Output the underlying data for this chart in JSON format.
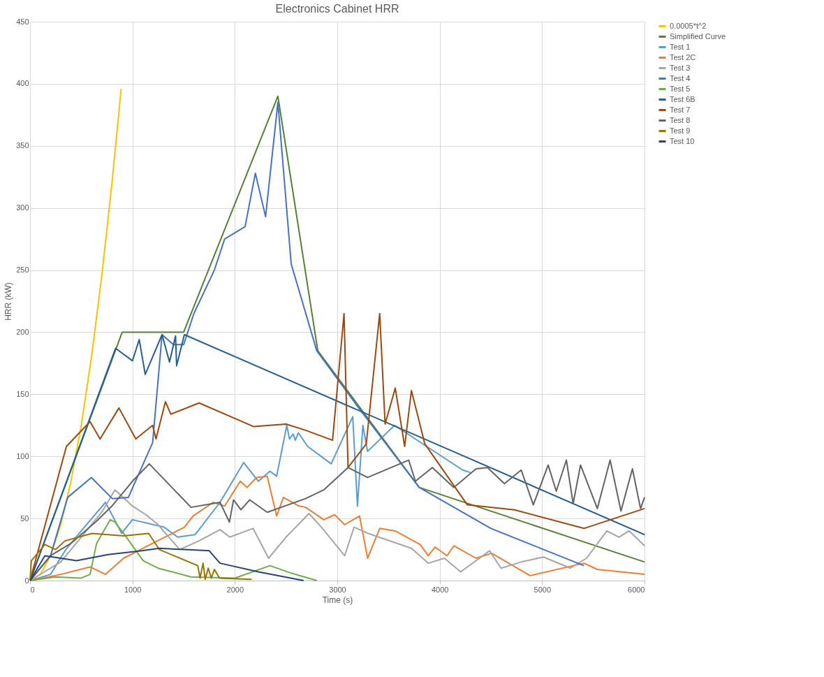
{
  "chart_data": {
    "type": "line",
    "title": "Electronics Cabinet HRR",
    "xlabel": "Time (s)",
    "ylabel": "HRR (kW)",
    "xlim": [
      0,
      6000
    ],
    "xticks": [
      0,
      1000,
      2000,
      3000,
      4000,
      5000,
      6000
    ],
    "ylim": [
      0,
      450
    ],
    "yticks": [
      0,
      50,
      100,
      150,
      200,
      250,
      300,
      350,
      400,
      450
    ],
    "grid": true,
    "legend": "right",
    "marker": "none",
    "line_style": "solid",
    "series": [
      {
        "name": "0.0005*t^2",
        "color": "#ffc000",
        "x": [
          0,
          100,
          200,
          300,
          400,
          500,
          600,
          700,
          800,
          890
        ],
        "values": [
          0,
          5,
          20,
          45,
          80,
          125,
          180,
          245,
          320,
          396
        ]
      },
      {
        "name": "Simplified Curve",
        "color": "#548235",
        "x": [
          0,
          900,
          1500,
          2420,
          2810,
          3800,
          6000
        ],
        "values": [
          0,
          200,
          200,
          390,
          185,
          75,
          15
        ]
      },
      {
        "name": "Test 1",
        "color": "#5b9bd5",
        "x": [
          0,
          200,
          350,
          500,
          737,
          895,
          1000,
          1309,
          1441,
          1612,
          1855,
          2086,
          2230,
          2342,
          2408,
          2507,
          2533,
          2570,
          2590,
          2620,
          2711,
          2941,
          3151,
          3197,
          3250,
          3296,
          3559,
          4224,
          4300
        ],
        "values": [
          0,
          5,
          25,
          40,
          63,
          38,
          49,
          43,
          35,
          37,
          63,
          95,
          80,
          88,
          84,
          125,
          114,
          118,
          113,
          119,
          108,
          94,
          132,
          60,
          125,
          104,
          125,
          89,
          87
        ]
      },
      {
        "name": "Test 2C",
        "color": "#ed7d31",
        "x": [
          0,
          300,
          586,
          737,
          914,
          1151,
          1507,
          1592,
          1789,
          1900,
          2053,
          2120,
          2211,
          2316,
          2408,
          2474,
          2625,
          2691,
          2868,
          2974,
          3072,
          3217,
          3296,
          3414,
          3566,
          3809,
          3888,
          3954,
          4072,
          4138,
          4355,
          4507,
          4882,
          5408,
          5539,
          6000
        ],
        "values": [
          0,
          5,
          11,
          5,
          18,
          28,
          43,
          52,
          63,
          60,
          80,
          75,
          83,
          84,
          52,
          67,
          60,
          59,
          49,
          53,
          45,
          52,
          18,
          42,
          40,
          29,
          20,
          27,
          20,
          28,
          18,
          22,
          4,
          14,
          9,
          5
        ]
      },
      {
        "name": "Test 3",
        "color": "#a5a5a5",
        "x": [
          0,
          300,
          500,
          700,
          829,
          1000,
          1132,
          1250,
          1461,
          1650,
          1855,
          1950,
          2178,
          2329,
          2500,
          2724,
          2855,
          3072,
          3164,
          3300,
          3724,
          3888,
          4046,
          4204,
          4487,
          4599,
          4796,
          5013,
          5276,
          5434,
          5632,
          5750,
          5850,
          6000
        ],
        "values": [
          0,
          15,
          35,
          55,
          73,
          60,
          53,
          45,
          25,
          32,
          41,
          35,
          42,
          18,
          35,
          54,
          42,
          20,
          43,
          38,
          26,
          14,
          18,
          7,
          24,
          10,
          15,
          19,
          10,
          18,
          40,
          35,
          40,
          28
        ]
      },
      {
        "name": "Test 4",
        "color": "#4472c4",
        "x": [
          0,
          200,
          368,
          599,
          803,
          960,
          1197,
          1289,
          1400,
          1500,
          1600,
          1800,
          1900,
          2100,
          2200,
          2300,
          2420,
          2550,
          2800,
          3200,
          3800,
          4500,
          5408
        ],
        "values": [
          0,
          20,
          67,
          83,
          66,
          67,
          111,
          198,
          190,
          190,
          215,
          250,
          275,
          285,
          328,
          293,
          385,
          255,
          185,
          140,
          75,
          42,
          12
        ]
      },
      {
        "name": "Test 5",
        "color": "#70ad47",
        "x": [
          0,
          250,
          500,
          586,
          650,
          783,
          830,
          914,
          1105,
          1250,
          1572,
          2000,
          2342,
          2550,
          2800
        ],
        "values": [
          0,
          3,
          2,
          5,
          30,
          49,
          47,
          38,
          16,
          10,
          3,
          2,
          12,
          6,
          0
        ]
      },
      {
        "name": "Test 6B",
        "color": "#255e91",
        "x": [
          0,
          835,
          1000,
          1066,
          1125,
          1289,
          1362,
          1421,
          1431,
          1507,
          6000
        ],
        "values": [
          0,
          187,
          177,
          194,
          166,
          198,
          176,
          197,
          173,
          198,
          37
        ]
      },
      {
        "name": "Test 7",
        "color": "#9e480e",
        "x": [
          0,
          355,
          586,
          684,
          868,
          1033,
          1197,
          1230,
          1322,
          1375,
          1651,
          2184,
          2500,
          2691,
          2954,
          3066,
          3105,
          3283,
          3414,
          3467,
          3566,
          3658,
          3724,
          3855,
          4270,
          4730,
          5408,
          6000
        ],
        "values": [
          0,
          108,
          128,
          114,
          139,
          114,
          125,
          114,
          144,
          134,
          143,
          124,
          126,
          121,
          113,
          215,
          91,
          110,
          215,
          126,
          155,
          108,
          153,
          110,
          61,
          57,
          42,
          58
        ]
      },
      {
        "name": "Test 8",
        "color": "#636363",
        "x": [
          0,
          200,
          400,
          651,
          800,
          1000,
          1164,
          1572,
          1855,
          1947,
          1987,
          2059,
          2145,
          2316,
          2691,
          2868,
          3105,
          3296,
          3612,
          3697,
          3763,
          3928,
          4138,
          4355,
          4467,
          4632,
          4796,
          4914,
          5059,
          5138,
          5237,
          5303,
          5375,
          5539,
          5664,
          5770,
          5882,
          5961,
          6000
        ],
        "values": [
          0,
          20,
          30,
          48,
          60,
          80,
          94,
          59,
          63,
          47,
          65,
          57,
          65,
          55,
          66,
          73,
          91,
          83,
          94,
          97,
          80,
          91,
          75,
          90,
          91,
          78,
          89,
          61,
          93,
          72,
          97,
          62,
          93,
          58,
          97,
          56,
          90,
          58,
          67
        ]
      },
      {
        "name": "Test 9",
        "color": "#997300",
        "x": [
          0,
          13,
          145,
          250,
          342,
          605,
          914,
          1158,
          1263,
          1638,
          1660,
          1690,
          1710,
          1740,
          1770,
          1800,
          1850,
          2164
        ],
        "values": [
          0,
          16,
          29,
          25,
          32,
          38,
          36,
          38,
          25,
          12,
          2,
          14,
          1,
          10,
          2,
          9,
          2,
          1
        ]
      },
      {
        "name": "Test 10",
        "color": "#264478",
        "x": [
          0,
          145,
          454,
          763,
          1092,
          1263,
          1750,
          1855,
          2230,
          2671
        ],
        "values": [
          0,
          20,
          16,
          21,
          24,
          26,
          24,
          14,
          7,
          0
        ]
      }
    ]
  }
}
